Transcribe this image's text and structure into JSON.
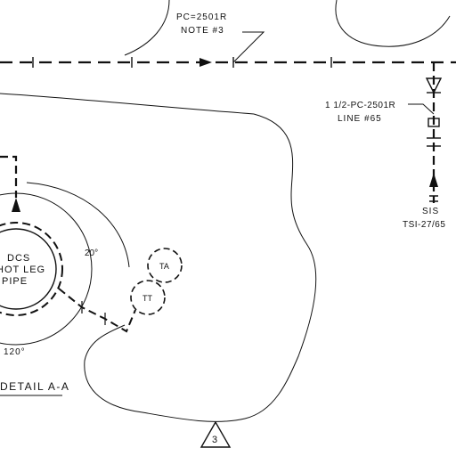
{
  "labels": {
    "pipe_spec_top": "PC=2501R",
    "note_top": "NOTE #3",
    "pipe_spec_right": "1 1/2-PC-2501R",
    "line_ref_right": "LINE #65",
    "sis_label": "SIS",
    "sis_tag": "TSI-27/65",
    "drum_line1": "DCS",
    "drum_line2": "HOT LEG",
    "drum_line3": "PIPE",
    "angle_20": "20°",
    "angle_120": "120°",
    "instrument_ta": "TA",
    "instrument_tt": "TT",
    "detail_title": "DETAIL A-A",
    "triangle_number": "3"
  },
  "colors": {
    "ink": "#111111",
    "paper": "#ffffff"
  }
}
